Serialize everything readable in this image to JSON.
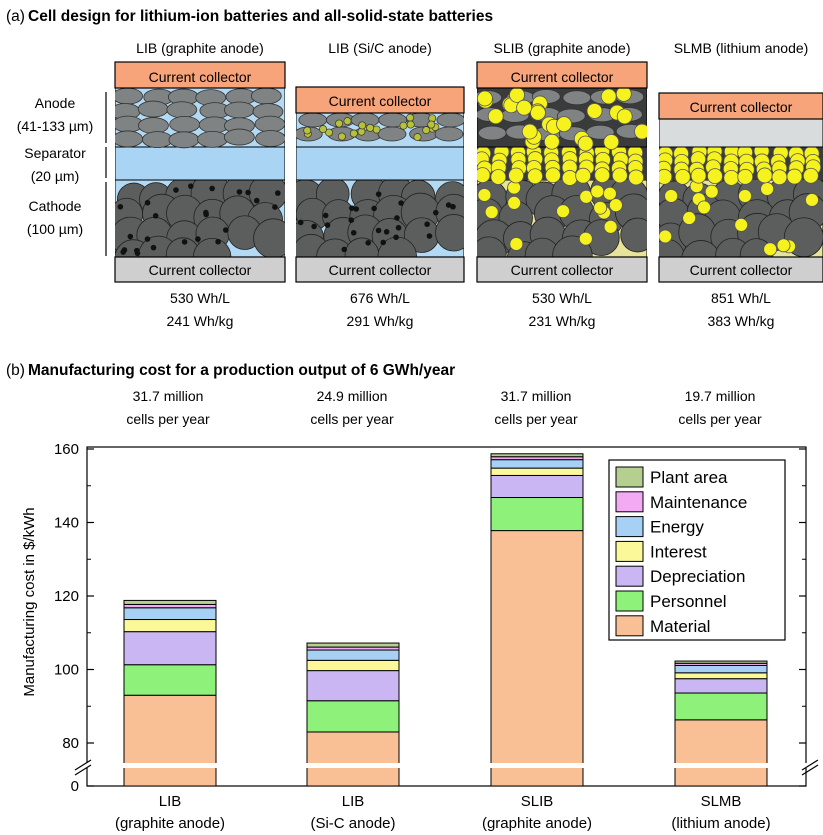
{
  "panel_a": {
    "label": "(a)",
    "title": "Cell design for lithium-ion batteries and all-solid-state batteries",
    "layer_labels": {
      "anode_line1": "Anode",
      "anode_line2": "(41-133 µm)",
      "separator_line1": "Separator",
      "separator_line2": "(20 µm)",
      "cathode_line1": "Cathode",
      "cathode_line2": "(100 µm)"
    },
    "current_collector": "Current collector",
    "cells": [
      {
        "name": "LIB (graphite anode)",
        "energy_vol": "530 Wh/L",
        "energy_grav": "241 Wh/kg"
      },
      {
        "name": "LIB (Si/C anode)",
        "energy_vol": "676 Wh/L",
        "energy_grav": "291 Wh/kg"
      },
      {
        "name": "SLIB (graphite anode)",
        "energy_vol": "530 Wh/L",
        "energy_grav": "231 Wh/kg"
      },
      {
        "name": "SLMB (lithium anode)",
        "energy_vol": "851 Wh/L",
        "energy_grav": "383 Wh/kg"
      }
    ],
    "colors": {
      "collector_top": "#f7a47a",
      "collector_bottom": "#cfcfcf",
      "electrolyte": "#b3daf5",
      "separator": "#a9d4f3",
      "particle": "#5c5e5e",
      "solid_electrolyte": "#f6f21e",
      "si": "#b7c23a"
    }
  },
  "panel_b": {
    "label": "(b)",
    "title": "Manufacturing cost for a production output of 6 GWh/year",
    "cells_per_year": [
      {
        "line1": "31.7 million",
        "line2": "cells per year"
      },
      {
        "line1": "24.9 million",
        "line2": "cells per year"
      },
      {
        "line1": "31.7 million",
        "line2": "cells per year"
      },
      {
        "line1": "19.7 million",
        "line2": "cells per year"
      }
    ]
  },
  "chart_data": {
    "type": "bar",
    "stacked": true,
    "title": "Manufacturing cost for a production output of 6 GWh/year",
    "xlabel": "",
    "ylabel": "Manufacturing cost in $/kWh",
    "ylim": [
      0,
      160
    ],
    "axis_break": [
      0,
      75
    ],
    "yticks": [
      0,
      80,
      100,
      120,
      140,
      160
    ],
    "grid": false,
    "legend_position": "top-right",
    "categories": [
      [
        "LIB",
        "(graphite anode)"
      ],
      [
        "LIB",
        "(Si-C anode)"
      ],
      [
        "SLIB",
        "(graphite anode)"
      ],
      [
        "SLMB",
        "(lithium anode)"
      ]
    ],
    "series": [
      {
        "name": "Material",
        "color": "#f9c096",
        "values": [
          93.0,
          83.0,
          137.8,
          86.3
        ]
      },
      {
        "name": "Personnel",
        "color": "#8ef27a",
        "values": [
          8.3,
          8.5,
          9.0,
          7.3
        ]
      },
      {
        "name": "Depreciation",
        "color": "#c9b6f2",
        "values": [
          9.0,
          8.2,
          6.0,
          3.9
        ]
      },
      {
        "name": "Interest",
        "color": "#fbf89a",
        "values": [
          3.3,
          2.8,
          2.0,
          1.6
        ]
      },
      {
        "name": "Energy",
        "color": "#a6d1f5",
        "values": [
          3.2,
          2.8,
          2.3,
          2.0
        ]
      },
      {
        "name": "Maintenance",
        "color": "#f2aaf2",
        "values": [
          0.9,
          0.8,
          0.8,
          0.6
        ]
      },
      {
        "name": "Plant area",
        "color": "#b5cf91",
        "values": [
          1.1,
          1.1,
          0.8,
          0.6
        ]
      }
    ],
    "legend_order": [
      "Plant area",
      "Maintenance",
      "Energy",
      "Interest",
      "Depreciation",
      "Personnel",
      "Material"
    ]
  }
}
